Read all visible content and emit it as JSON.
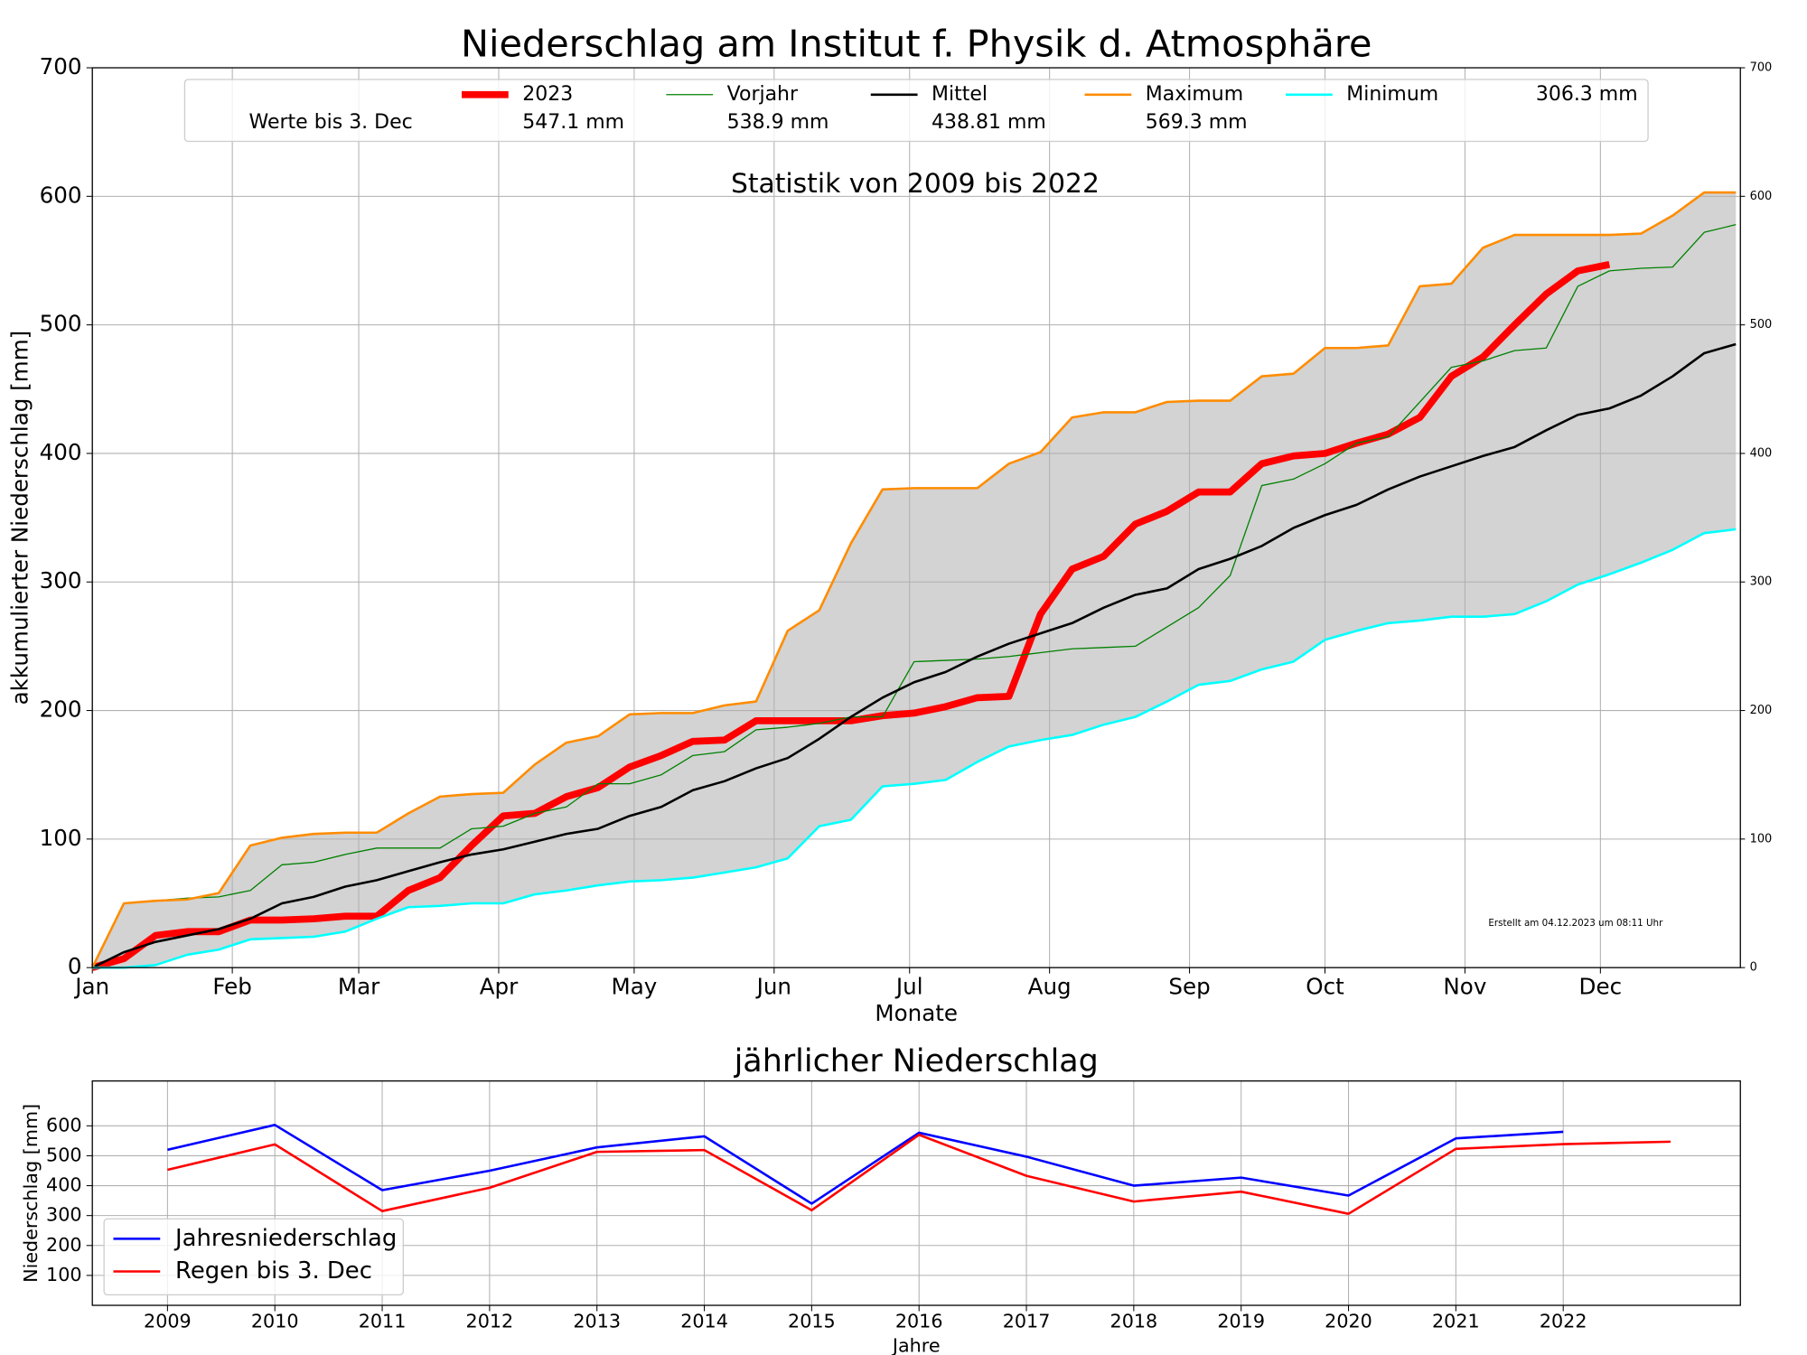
{
  "chart_data": [
    {
      "type": "line",
      "title": "Niederschlag am Institut f. Physik d. Atmosphäre",
      "subtitle": "Statistik von 2009 bis 2022",
      "note": "Erstellt am 04.12.2023 um 08:11 Uhr",
      "legend_note": "Werte bis  3. Dec",
      "xlabel": "Monate",
      "ylabel": "akkumulierter Niederschlag [mm]",
      "x": [
        0,
        7,
        14,
        21,
        28,
        35,
        42,
        49,
        56,
        63,
        70,
        77,
        84,
        91,
        98,
        105,
        112,
        119,
        126,
        133,
        140,
        147,
        154,
        161,
        168,
        175,
        182,
        189,
        196,
        203,
        210,
        217,
        224,
        231,
        238,
        245,
        252,
        259,
        266,
        273,
        280,
        287,
        294,
        301,
        308,
        315,
        322,
        329,
        336,
        343,
        350,
        357,
        364
      ],
      "xlim": [
        0,
        365
      ],
      "xticks": [
        {
          "value": 0,
          "label": "Jan"
        },
        {
          "value": 31,
          "label": "Feb"
        },
        {
          "value": 59,
          "label": "Mar"
        },
        {
          "value": 90,
          "label": "Apr"
        },
        {
          "value": 120,
          "label": "May"
        },
        {
          "value": 151,
          "label": "Jun"
        },
        {
          "value": 181,
          "label": "Jul"
        },
        {
          "value": 212,
          "label": "Aug"
        },
        {
          "value": 243,
          "label": "Sep"
        },
        {
          "value": 273,
          "label": "Oct"
        },
        {
          "value": 304,
          "label": "Nov"
        },
        {
          "value": 334,
          "label": "Dec"
        }
      ],
      "ylim": [
        0,
        700
      ],
      "yticks": [
        0,
        100,
        200,
        300,
        400,
        500,
        600,
        700
      ],
      "y2lim": [
        0,
        700
      ],
      "y2ticks": [
        0,
        100,
        200,
        300,
        400,
        500,
        600,
        700
      ],
      "grid": true,
      "fill_color": "#d3d3d3",
      "series": [
        {
          "name": "2023",
          "color": "#ff0000",
          "linewidth": 6,
          "total": "547.1 mm",
          "values": [
            0,
            7,
            25,
            28,
            28,
            37,
            37,
            38,
            40,
            40,
            60,
            70,
            95,
            118,
            120,
            133,
            140,
            156,
            165,
            176,
            177,
            192,
            192,
            192,
            192,
            196,
            198,
            203,
            210,
            211,
            275,
            310,
            320,
            345,
            355,
            370,
            370,
            392,
            398,
            400,
            408,
            415,
            428,
            460,
            475,
            500,
            524,
            542,
            547,
            null,
            null,
            null,
            null
          ]
        },
        {
          "name": "Vorjahr",
          "color": "#008000",
          "linewidth": 1,
          "total": "538.9 mm",
          "values": [
            0,
            50,
            52,
            54,
            55,
            60,
            80,
            82,
            88,
            93,
            93,
            93,
            108,
            110,
            120,
            125,
            143,
            143,
            150,
            165,
            168,
            185,
            187,
            190,
            195,
            195,
            238,
            239,
            240,
            242,
            245,
            248,
            249,
            250,
            265,
            280,
            305,
            375,
            380,
            392,
            408,
            413,
            440,
            467,
            472,
            480,
            482,
            530,
            542,
            544,
            545,
            572,
            578
          ]
        },
        {
          "name": "Mittel",
          "color": "#000000",
          "linewidth": 2,
          "total": "438.81 mm",
          "values": [
            0,
            12,
            20,
            25,
            30,
            38,
            50,
            55,
            63,
            68,
            75,
            82,
            88,
            92,
            98,
            104,
            108,
            118,
            125,
            138,
            145,
            155,
            163,
            178,
            195,
            210,
            222,
            230,
            242,
            252,
            260,
            268,
            280,
            290,
            295,
            310,
            318,
            328,
            342,
            352,
            360,
            372,
            382,
            390,
            398,
            405,
            418,
            430,
            435,
            445,
            460,
            478,
            485
          ]
        },
        {
          "name": "Maximum",
          "color": "#ff8c00",
          "linewidth": 2,
          "total": "569.3 mm",
          "values": [
            0,
            50,
            52,
            53,
            58,
            95,
            101,
            104,
            105,
            105,
            120,
            133,
            135,
            136,
            158,
            175,
            180,
            197,
            198,
            198,
            204,
            207,
            262,
            278,
            330,
            372,
            373,
            373,
            373,
            392,
            401,
            428,
            432,
            432,
            440,
            441,
            441,
            460,
            462,
            482,
            482,
            484,
            530,
            532,
            560,
            570,
            570,
            570,
            570,
            571,
            585,
            603,
            603
          ]
        },
        {
          "name": "Minimum",
          "color": "#00ffff",
          "linewidth": 2,
          "total": "306.3 mm",
          "values": [
            0,
            0,
            2,
            10,
            14,
            22,
            23,
            24,
            28,
            38,
            47,
            48,
            50,
            50,
            57,
            60,
            64,
            67,
            68,
            70,
            74,
            78,
            85,
            110,
            115,
            141,
            143,
            146,
            160,
            172,
            177,
            181,
            189,
            195,
            207,
            220,
            223,
            232,
            238,
            255,
            262,
            268,
            270,
            273,
            273,
            275,
            285,
            298,
            306,
            315,
            325,
            338,
            341
          ]
        }
      ]
    },
    {
      "type": "line",
      "title": "jährlicher Niederschlag",
      "xlabel": "Jahre",
      "ylabel": "Niederschlag [mm]",
      "x": [
        2009,
        2010,
        2011,
        2012,
        2013,
        2014,
        2015,
        2016,
        2017,
        2018,
        2019,
        2020,
        2021,
        2022,
        2023
      ],
      "xlim": [
        2008.3,
        2023.65
      ],
      "xticks": [
        2009,
        2010,
        2011,
        2012,
        2013,
        2014,
        2015,
        2016,
        2017,
        2018,
        2019,
        2020,
        2021,
        2022
      ],
      "ylim": [
        0,
        750
      ],
      "yticks": [
        100,
        200,
        300,
        400,
        500,
        600
      ],
      "grid": true,
      "legend": "lower left",
      "series": [
        {
          "name": "Jahresniederschlag",
          "color": "#0000ff",
          "linewidth": 2,
          "values": [
            520,
            603,
            385,
            450,
            528,
            565,
            340,
            577,
            497,
            400,
            427,
            367,
            558,
            580,
            null
          ]
        },
        {
          "name": "Regen bis  3. Dec",
          "color": "#ff0000",
          "linewidth": 2,
          "values": [
            453,
            538,
            315,
            393,
            513,
            519,
            318,
            570,
            433,
            347,
            380,
            306,
            523,
            539,
            547
          ]
        }
      ]
    }
  ]
}
